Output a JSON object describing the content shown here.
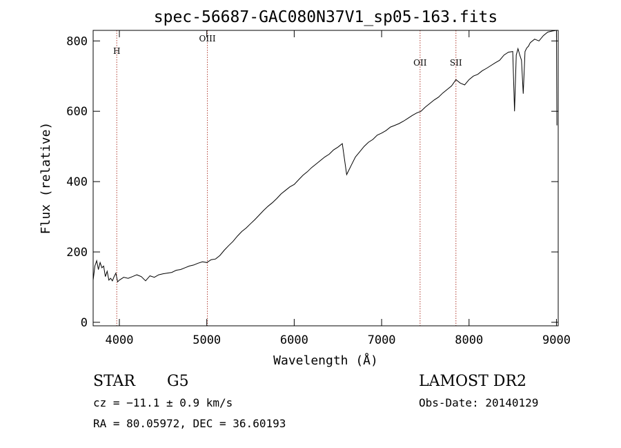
{
  "chart_data": {
    "type": "line",
    "title": "spec-56687-GAC080N37V1_sp05-163.fits",
    "xlabel": "Wavelength (Å)",
    "ylabel": "Flux (relative)",
    "xlim": [
      3700,
      9020
    ],
    "ylim": [
      -10,
      830
    ],
    "x_ticks": [
      4000,
      5000,
      6000,
      7000,
      8000,
      9000
    ],
    "y_ticks": [
      0,
      200,
      400,
      600,
      800
    ],
    "grid": false,
    "series": [
      {
        "x": [
          3700,
          3720,
          3740,
          3760,
          3780,
          3800,
          3820,
          3840,
          3860,
          3880,
          3900,
          3920,
          3940,
          3960,
          3980,
          4000,
          4050,
          4100,
          4150,
          4200,
          4250,
          4300,
          4350,
          4400,
          4450,
          4500,
          4550,
          4600,
          4650,
          4700,
          4750,
          4800,
          4850,
          4900,
          4950,
          5000,
          5050,
          5100,
          5150,
          5200,
          5250,
          5300,
          5350,
          5400,
          5450,
          5500,
          5550,
          5600,
          5650,
          5700,
          5750,
          5800,
          5850,
          5900,
          5950,
          6000,
          6050,
          6100,
          6150,
          6200,
          6250,
          6300,
          6350,
          6400,
          6450,
          6500,
          6550,
          6600,
          6650,
          6700,
          6750,
          6800,
          6850,
          6900,
          6950,
          7000,
          7050,
          7100,
          7150,
          7200,
          7250,
          7300,
          7350,
          7400,
          7450,
          7500,
          7550,
          7600,
          7650,
          7700,
          7750,
          7800,
          7850,
          7900,
          7950,
          8000,
          8050,
          8100,
          8150,
          8200,
          8250,
          8300,
          8350,
          8400,
          8450,
          8500,
          8520,
          8540,
          8560,
          8580,
          8600,
          8620,
          8640,
          8660,
          8680,
          8700,
          8750,
          8800,
          8850,
          8900,
          8950,
          9000,
          9005
        ],
        "y": [
          120,
          160,
          175,
          150,
          170,
          155,
          160,
          130,
          145,
          120,
          125,
          118,
          130,
          140,
          115,
          120,
          128,
          125,
          130,
          135,
          130,
          118,
          132,
          128,
          135,
          138,
          140,
          142,
          148,
          150,
          155,
          160,
          163,
          168,
          172,
          170,
          178,
          180,
          190,
          205,
          218,
          230,
          245,
          258,
          268,
          280,
          292,
          305,
          318,
          330,
          340,
          352,
          365,
          375,
          385,
          392,
          405,
          418,
          428,
          440,
          450,
          460,
          470,
          478,
          490,
          498,
          508,
          420,
          445,
          470,
          485,
          500,
          512,
          520,
          532,
          538,
          545,
          555,
          560,
          565,
          572,
          580,
          588,
          595,
          600,
          612,
          622,
          632,
          640,
          652,
          662,
          672,
          690,
          680,
          675,
          690,
          700,
          705,
          715,
          722,
          730,
          738,
          745,
          760,
          768,
          770,
          600,
          760,
          778,
          760,
          745,
          650,
          770,
          780,
          785,
          795,
          805,
          800,
          815,
          825,
          828,
          840,
          560
        ]
      }
    ],
    "reference_lines": [
      {
        "label": "H",
        "x": 3970
      },
      {
        "label": "OIII",
        "x": 5007
      },
      {
        "label": "OII",
        "x": 7440
      },
      {
        "label": "SII",
        "x": 7850
      }
    ]
  },
  "info": {
    "object_class": "STAR",
    "subclass": "G5",
    "redshift": "cz = −11.1 ± 0.9 km/s",
    "coords": "RA =  80.05972, DEC =  36.60193",
    "survey": "LAMOST DR2",
    "obs_date": "Obs-Date: 20140129"
  },
  "colors": {
    "axis": "#000000",
    "spectrum": "#000000",
    "reference_line": "#b03a2e"
  }
}
